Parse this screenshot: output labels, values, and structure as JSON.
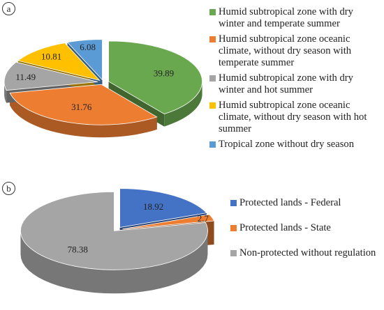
{
  "panels": [
    {
      "badge": "a",
      "chart_data": {
        "type": "pie",
        "title": "",
        "slices": [
          {
            "name": "Humid subtropical zone with dry winter and temperate summer",
            "value": 39.89,
            "label": "39.89",
            "color": "#6aa84f"
          },
          {
            "name": "Humid subtropical zone oceanic climate, without dry season with temperate summer",
            "value": 31.76,
            "label": "31.76",
            "color": "#ed7d31"
          },
          {
            "name": "Humid subtropical zone with dry winter and hot summer",
            "value": 11.49,
            "label": "11.49",
            "color": "#a5a5a5"
          },
          {
            "name": "Humid subtropical zone oceanic climate, without dry season with hot summer",
            "value": 10.81,
            "label": "10.81",
            "color": "#ffc000"
          },
          {
            "name": "Tropical zone without dry season",
            "value": 6.08,
            "label": "6.08",
            "color": "#5b9bd5"
          }
        ],
        "style": "3d-exploded",
        "legend": "right"
      }
    },
    {
      "badge": "b",
      "chart_data": {
        "type": "pie",
        "title": "",
        "slices": [
          {
            "name": "Protected lands - Federal",
            "value": 18.92,
            "label": "18.92",
            "color": "#4472c4"
          },
          {
            "name": "Protected lands - State",
            "value": 2.7,
            "label": "2.7",
            "color": "#ed7d31"
          },
          {
            "name": "Non-protected without regulation",
            "value": 78.38,
            "label": "78.38",
            "color": "#a5a5a5"
          }
        ],
        "style": "3d-exploded",
        "legend": "right"
      }
    }
  ]
}
